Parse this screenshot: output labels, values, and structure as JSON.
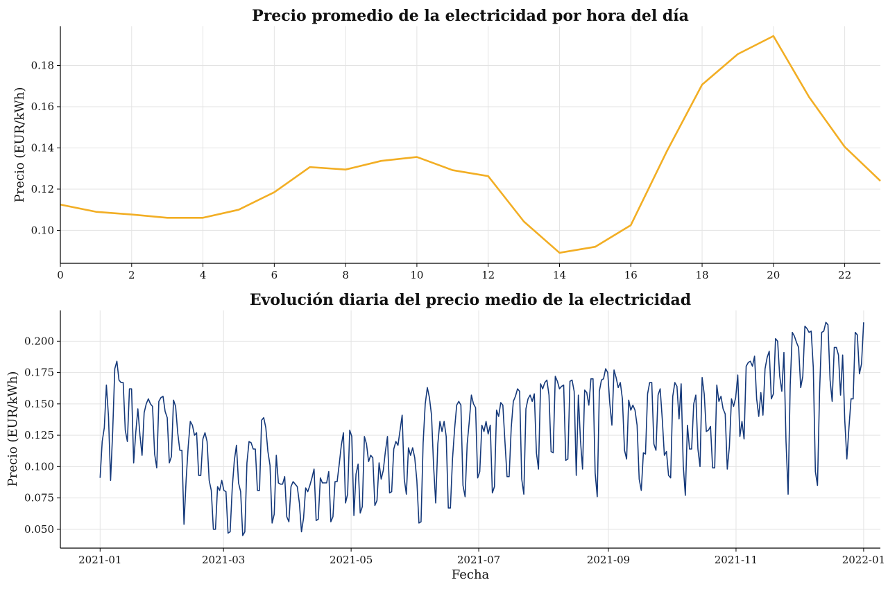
{
  "chart_data": [
    {
      "type": "line",
      "title": "Precio promedio de la electricidad por hora del día",
      "xlabel": "",
      "ylabel": "Precio (EUR/kWh)",
      "xlim": [
        0,
        23
      ],
      "ylim": [
        0.084,
        0.199
      ],
      "xticks": [
        "0",
        "2",
        "4",
        "6",
        "8",
        "10",
        "12",
        "14",
        "16",
        "18",
        "20",
        "22"
      ],
      "yticks": [
        "0.10",
        "0.12",
        "0.14",
        "0.16",
        "0.18"
      ],
      "grid": true,
      "color": "#f2ae24",
      "x": [
        0,
        1,
        2,
        3,
        4,
        5,
        6,
        7,
        8,
        9,
        10,
        11,
        12,
        13,
        14,
        15,
        16,
        17,
        18,
        19,
        20,
        21,
        22,
        23
      ],
      "values": [
        0.1125,
        0.109,
        0.1077,
        0.1061,
        0.1061,
        0.11,
        0.1185,
        0.1307,
        0.1295,
        0.1337,
        0.1356,
        0.1292,
        0.1263,
        0.1043,
        0.0891,
        0.092,
        0.1025,
        0.138,
        0.1707,
        0.1855,
        0.1943,
        0.1647,
        0.1405,
        0.124
      ]
    },
    {
      "type": "line",
      "title": "Evolución diaria del precio medio de la electricidad",
      "xlabel": "Fecha",
      "ylabel": "Precio (EUR/kWh)",
      "xlim": [
        "2020-12-13",
        "2022-01-09"
      ],
      "ylim": [
        0.035,
        0.2245
      ],
      "xticks": [
        "2021-01",
        "2021-03",
        "2021-05",
        "2021-07",
        "2021-09",
        "2021-11",
        "2022-01"
      ],
      "yticks": [
        "0.050",
        "0.075",
        "0.100",
        "0.125",
        "0.150",
        "0.175",
        "0.200"
      ],
      "grid": true,
      "color": "#15397a",
      "x_start": "2021-01-01",
      "x_end": "2022-01-01",
      "values": [
        0.091,
        0.12,
        0.131,
        0.165,
        0.14,
        0.089,
        0.128,
        0.178,
        0.184,
        0.169,
        0.167,
        0.167,
        0.129,
        0.12,
        0.162,
        0.162,
        0.103,
        0.127,
        0.146,
        0.125,
        0.109,
        0.143,
        0.15,
        0.154,
        0.15,
        0.148,
        0.11,
        0.099,
        0.152,
        0.155,
        0.156,
        0.144,
        0.139,
        0.103,
        0.108,
        0.153,
        0.148,
        0.127,
        0.113,
        0.113,
        0.054,
        0.089,
        0.116,
        0.136,
        0.133,
        0.125,
        0.127,
        0.093,
        0.093,
        0.122,
        0.127,
        0.12,
        0.089,
        0.081,
        0.05,
        0.05,
        0.084,
        0.081,
        0.089,
        0.081,
        0.08,
        0.047,
        0.048,
        0.083,
        0.105,
        0.117,
        0.087,
        0.08,
        0.045,
        0.048,
        0.103,
        0.12,
        0.119,
        0.114,
        0.114,
        0.081,
        0.081,
        0.137,
        0.139,
        0.131,
        0.112,
        0.101,
        0.055,
        0.062,
        0.109,
        0.087,
        0.086,
        0.086,
        0.092,
        0.06,
        0.056,
        0.084,
        0.088,
        0.086,
        0.084,
        0.071,
        0.048,
        0.059,
        0.083,
        0.08,
        0.085,
        0.091,
        0.098,
        0.057,
        0.058,
        0.091,
        0.087,
        0.087,
        0.087,
        0.096,
        0.056,
        0.06,
        0.088,
        0.088,
        0.102,
        0.117,
        0.127,
        0.071,
        0.078,
        0.129,
        0.124,
        0.061,
        0.094,
        0.102,
        0.063,
        0.068,
        0.124,
        0.118,
        0.104,
        0.109,
        0.107,
        0.069,
        0.073,
        0.103,
        0.09,
        0.097,
        0.112,
        0.124,
        0.079,
        0.08,
        0.114,
        0.12,
        0.117,
        0.129,
        0.141,
        0.09,
        0.078,
        0.115,
        0.109,
        0.115,
        0.107,
        0.089,
        0.055,
        0.056,
        0.119,
        0.15,
        0.163,
        0.155,
        0.141,
        0.1,
        0.071,
        0.118,
        0.136,
        0.128,
        0.136,
        0.124,
        0.067,
        0.067,
        0.106,
        0.13,
        0.149,
        0.152,
        0.149,
        0.085,
        0.076,
        0.118,
        0.136,
        0.157,
        0.15,
        0.147,
        0.091,
        0.096,
        0.133,
        0.128,
        0.136,
        0.126,
        0.133,
        0.079,
        0.084,
        0.145,
        0.14,
        0.151,
        0.149,
        0.12,
        0.092,
        0.092,
        0.131,
        0.152,
        0.156,
        0.162,
        0.16,
        0.09,
        0.078,
        0.146,
        0.154,
        0.157,
        0.152,
        0.158,
        0.111,
        0.098,
        0.166,
        0.162,
        0.167,
        0.169,
        0.157,
        0.112,
        0.111,
        0.172,
        0.168,
        0.162,
        0.164,
        0.165,
        0.105,
        0.106,
        0.168,
        0.169,
        0.16,
        0.093,
        0.157,
        0.121,
        0.098,
        0.161,
        0.159,
        0.149,
        0.17,
        0.17,
        0.095,
        0.076,
        0.16,
        0.169,
        0.17,
        0.178,
        0.175,
        0.15,
        0.133,
        0.177,
        0.171,
        0.163,
        0.167,
        0.154,
        0.113,
        0.106,
        0.153,
        0.145,
        0.149,
        0.145,
        0.133,
        0.09,
        0.081,
        0.111,
        0.11,
        0.158,
        0.167,
        0.167,
        0.118,
        0.113,
        0.157,
        0.162,
        0.138,
        0.109,
        0.112,
        0.093,
        0.091,
        0.156,
        0.167,
        0.164,
        0.138,
        0.166,
        0.101,
        0.077,
        0.133,
        0.114,
        0.114,
        0.15,
        0.157,
        0.114,
        0.1,
        0.171,
        0.158,
        0.128,
        0.129,
        0.132,
        0.099,
        0.099,
        0.165,
        0.152,
        0.156,
        0.146,
        0.142,
        0.098,
        0.116,
        0.154,
        0.148,
        0.155,
        0.173,
        0.124,
        0.136,
        0.122,
        0.18,
        0.183,
        0.184,
        0.18,
        0.188,
        0.154,
        0.14,
        0.159,
        0.141,
        0.178,
        0.187,
        0.192,
        0.154,
        0.158,
        0.202,
        0.2,
        0.172,
        0.16,
        0.191,
        0.12,
        0.078,
        0.165,
        0.207,
        0.204,
        0.199,
        0.195,
        0.163,
        0.172,
        0.212,
        0.21,
        0.207,
        0.208,
        0.179,
        0.096,
        0.085,
        0.16,
        0.207,
        0.208,
        0.215,
        0.213,
        0.169,
        0.152,
        0.195,
        0.195,
        0.189,
        0.157,
        0.189,
        0.137,
        0.106,
        0.131,
        0.154,
        0.154,
        0.207,
        0.205,
        0.174,
        0.182,
        0.215
      ]
    }
  ]
}
